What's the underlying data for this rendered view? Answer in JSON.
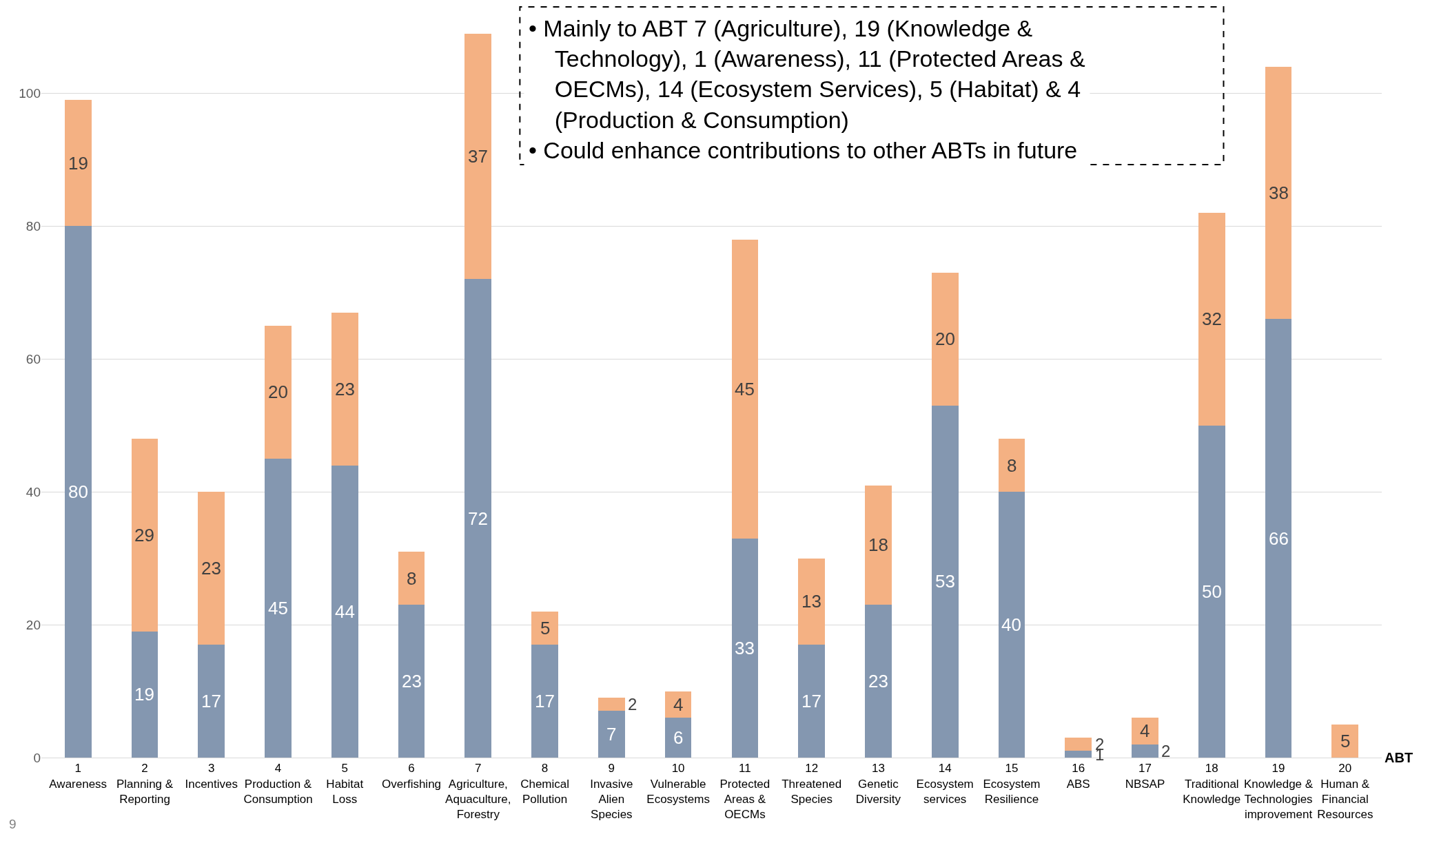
{
  "chart_data": {
    "type": "bar",
    "stacked": true,
    "data_labels": true,
    "legend": false,
    "grid": "y",
    "xlabel": "ABT",
    "categories": [
      "1\nAwareness",
      "2\nPlanning &\nReporting",
      "3\nIncentives",
      "4\nProduction &\nConsumption",
      "5\nHabitat\nLoss",
      "6\nOverfishing",
      "7\nAgriculture,\nAquaculture,\nForestry",
      "8\nChemical\nPollution",
      "9\nInvasive\nAlien\nSpecies",
      "10\nVulnerable\nEcosystems",
      "11\nProtected\nAreas &\nOECMs",
      "12\nThreatened\nSpecies",
      "13\nGenetic\nDiversity",
      "14\nEcosystem\nservices",
      "15\nEcosystem\nResilience",
      "16\nABS",
      "17\nNBSAP",
      "18\nTraditional\nKnowledge",
      "19\nKnowledge &\nTechnologies\nimprovement",
      "20\nHuman &\nFinancial\nResources"
    ],
    "series": [
      {
        "color": "#8497b0",
        "values": [
          80,
          19,
          17,
          45,
          44,
          23,
          72,
          17,
          7,
          6,
          33,
          17,
          23,
          53,
          40,
          1,
          2,
          50,
          66,
          null
        ]
      },
      {
        "color": "#f4b183",
        "values": [
          19,
          29,
          23,
          20,
          23,
          8,
          37,
          5,
          2,
          4,
          45,
          13,
          18,
          20,
          8,
          2,
          4,
          32,
          38,
          5
        ]
      }
    ],
    "ylim": [
      0,
      113
    ],
    "yticks": [
      0,
      20,
      40,
      60,
      80,
      100
    ],
    "annotations": [
      "• Mainly to ABT 7 (Agriculture), 19 (Knowledge & Technology), 1 (Awareness), 11 (Protected Areas & OECMs), 14 (Ecosystem Services), 5 (Habitat) & 4 (Production & Consumption)",
      "• Could enhance contributions to other ABTs in future",
      "9"
    ]
  }
}
